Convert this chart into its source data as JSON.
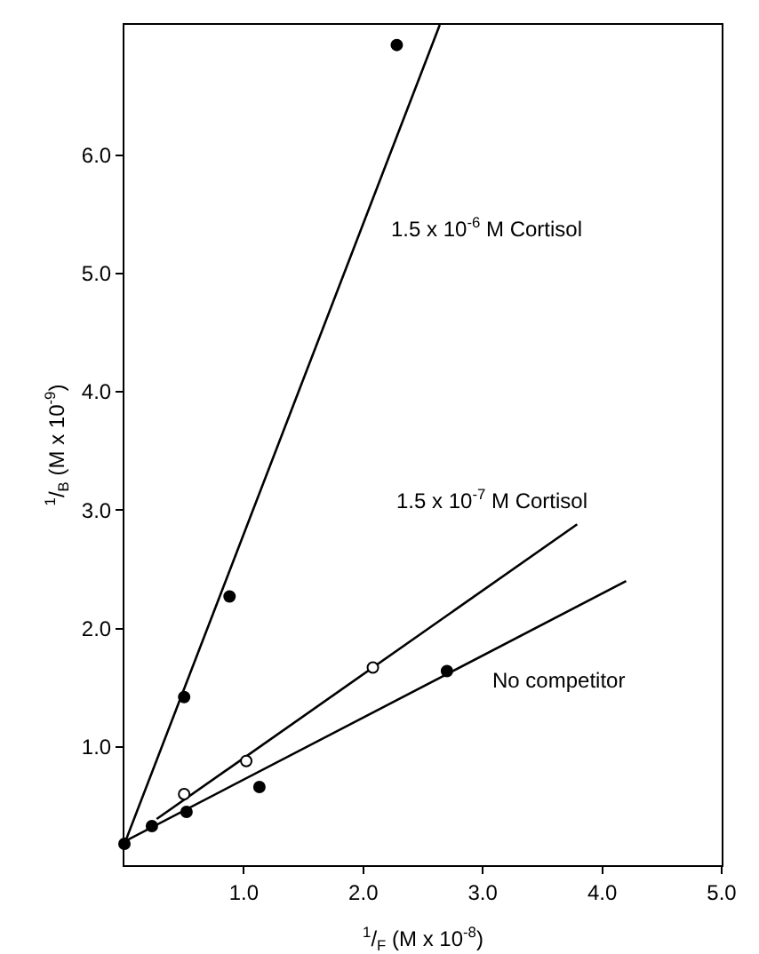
{
  "chart_data": {
    "type": "scatter",
    "xlabel": "$^{1}$/$_{F}$ (M x 10$^{-8}$)",
    "ylabel": "$^{1}$/$_{B}$ (M x 10$^{-9}$)",
    "xlim": [
      0,
      5
    ],
    "ylim": [
      0,
      7.1
    ],
    "xticks": [
      {
        "value": 1,
        "label": "1.0"
      },
      {
        "value": 2,
        "label": "2.0"
      },
      {
        "value": 3,
        "label": "3.0"
      },
      {
        "value": 4,
        "label": "4.0"
      },
      {
        "value": 5,
        "label": "5.0"
      }
    ],
    "yticks": [
      {
        "value": 1,
        "label": "1.0"
      },
      {
        "value": 2,
        "label": "2.0"
      },
      {
        "value": 3,
        "label": "3.0"
      },
      {
        "value": 4,
        "label": "4.0"
      },
      {
        "value": 5,
        "label": "5.0"
      },
      {
        "value": 6,
        "label": "6.0"
      }
    ],
    "grid": false,
    "legend": false,
    "marker": "circle",
    "series": [
      {
        "type": "line",
        "name": "1.5 x 10$^{-6}$ M Cortisol",
        "marker": "none",
        "color": "#000000",
        "x": [
          0,
          2.64
        ],
        "values": [
          0.18,
          7.1
        ]
      },
      {
        "type": "line",
        "name": "1.5 x 10$^{-7}$ M Cortisol",
        "marker": "none",
        "color": "#000000",
        "x": [
          0.27,
          3.79
        ],
        "values": [
          0.39,
          2.88
        ]
      },
      {
        "type": "line",
        "name": "No competitor",
        "marker": "none",
        "color": "#000000",
        "x": [
          0,
          4.2
        ],
        "values": [
          0.2,
          2.4
        ]
      },
      {
        "color": "#000000",
        "x": [
          0.5,
          0.88,
          2.28
        ],
        "values": [
          1.42,
          2.27,
          6.93
        ]
      },
      {
        "color": "#ffffff",
        "x": [
          0.5,
          1.02,
          2.08
        ],
        "values": [
          0.6,
          0.88,
          1.67
        ]
      },
      {
        "color": "#000000",
        "x": [
          0,
          0.23,
          0.52,
          1.13,
          2.7
        ],
        "values": [
          0.18,
          0.33,
          0.45,
          0.66,
          1.64
        ]
      }
    ]
  }
}
